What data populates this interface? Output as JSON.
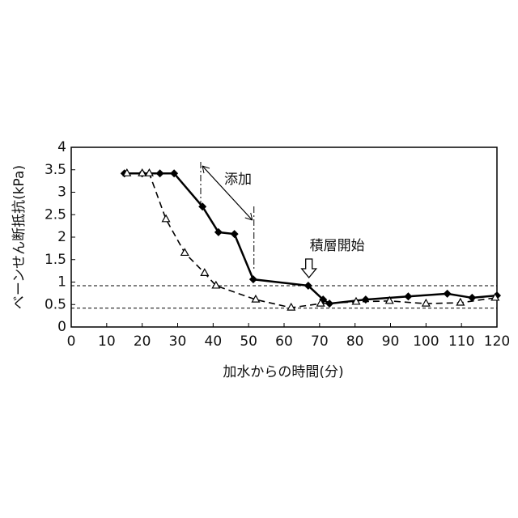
{
  "chart_data": {
    "type": "line",
    "xlabel": "加水からの時間(分)",
    "ylabel": "ベーンせん断抵抗(kPa)",
    "series": [
      {
        "color": "#000000",
        "style": "solid",
        "marker": "diamond",
        "x": [
          15,
          20,
          25,
          29,
          37,
          41.5,
          46,
          51.3,
          66.8,
          71,
          72.8,
          83,
          95,
          106,
          113,
          120
        ],
        "values": [
          3.42,
          3.42,
          3.42,
          3.42,
          2.68,
          2.11,
          2.07,
          1.06,
          0.92,
          0.61,
          0.52,
          0.61,
          0.68,
          0.74,
          0.65,
          0.7
        ]
      },
      {
        "color": "#000000",
        "style": "dashed",
        "marker": "triangle",
        "x": [
          15.7,
          20,
          22,
          26.7,
          32,
          37.6,
          40.8,
          52,
          62,
          70.3,
          80.3,
          89.7,
          100,
          109.7,
          119.5
        ],
        "values": [
          3.42,
          3.42,
          3.42,
          2.4,
          1.65,
          1.2,
          0.92,
          0.61,
          0.43,
          0.52,
          0.56,
          0.58,
          0.52,
          0.54,
          0.65
        ]
      }
    ],
    "reference_lines": [
      0.92,
      0.42
    ],
    "annotations": [
      {
        "text": "添加",
        "x": [
          36.5,
          51.5
        ]
      },
      {
        "text": "積層開始",
        "x": 67
      }
    ],
    "xlim": [
      0,
      120
    ],
    "xticks": [
      0,
      10,
      20,
      30,
      40,
      50,
      60,
      70,
      80,
      90,
      100,
      110,
      120
    ],
    "ylim": [
      0,
      4
    ],
    "yticks": [
      0,
      0.5,
      1,
      1.5,
      2,
      2.5,
      3,
      3.5,
      4
    ]
  }
}
